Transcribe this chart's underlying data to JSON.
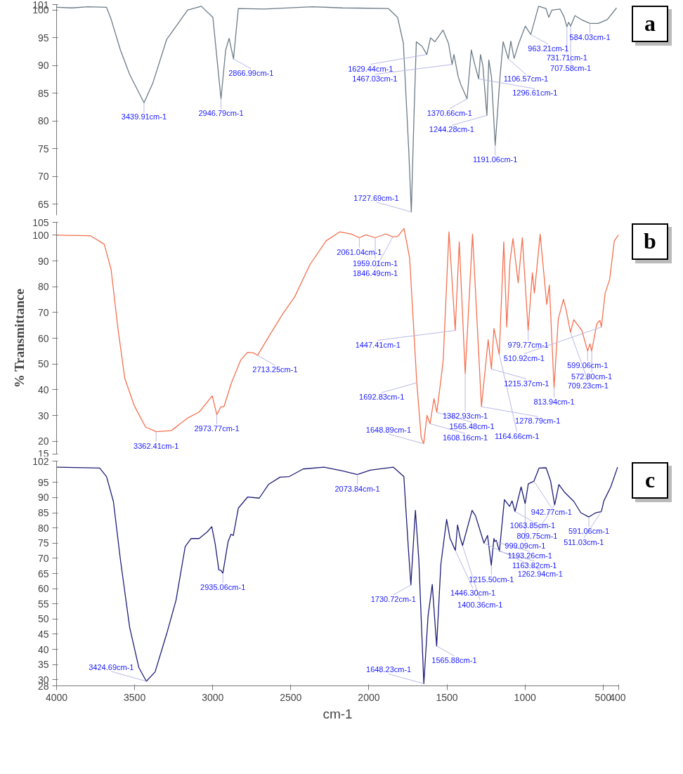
{
  "chart_data": [
    {
      "type": "line",
      "xlim": [
        4000,
        400
      ],
      "ylim": [
        63,
        101
      ],
      "xticks": [
        4000,
        3500,
        3000,
        2500,
        2000,
        1500,
        1000,
        500,
        400
      ],
      "yticks": [
        101,
        100,
        95,
        90,
        85,
        80,
        75,
        70,
        65
      ],
      "tick_labels": "y",
      "x": [
        4000,
        3900,
        3800,
        3680,
        3650,
        3591,
        3532,
        3440,
        3384,
        3295,
        3161,
        3073,
        2999,
        2947,
        2917,
        2895,
        2867,
        2836,
        2673,
        2362,
        2169,
        1876,
        1816,
        1779,
        1745,
        1728,
        1712,
        1696,
        1660,
        1629,
        1605,
        1577,
        1525,
        1490,
        1467,
        1455,
        1428,
        1410,
        1371,
        1344,
        1320,
        1297,
        1285,
        1270,
        1244,
        1232,
        1215,
        1191,
        1160,
        1140,
        1107,
        1091,
        1070,
        1040,
        998,
        963,
        913,
        866,
        848,
        828,
        776,
        750,
        732,
        720,
        708,
        680,
        640,
        584,
        532,
        473,
        414
      ],
      "series": [
        {
          "color": "#6b7b87",
          "values": [
            100.5,
            100.4,
            100.6,
            100.5,
            98.3,
            92.8,
            88.4,
            83.3,
            86.8,
            94.7,
            100.0,
            100.7,
            98.7,
            84.0,
            92.8,
            94.9,
            91.2,
            100.3,
            100.2,
            100.6,
            100.4,
            100.3,
            98.7,
            94,
            75,
            63.6,
            80,
            94.3,
            93.5,
            92.0,
            95.0,
            94.3,
            96.4,
            94,
            90.2,
            92.0,
            88.0,
            86.5,
            84.0,
            92.8,
            90,
            87.6,
            92.0,
            90,
            81.0,
            91.0,
            88,
            75.6,
            88,
            94.3,
            91.2,
            94.4,
            91.3,
            94,
            97.1,
            95.6,
            100.7,
            100.3,
            98.7,
            100.0,
            100.2,
            98.8,
            97.0,
            97.8,
            97.1,
            99.0,
            98.3,
            97.6,
            97.6,
            98.3,
            100.4
          ]
        }
      ],
      "annotations": [
        "a",
        {
          "text": "3439.91cm-1",
          "x": 3439.91,
          "y": 83.3
        },
        {
          "text": "2946.79cm-1",
          "x": 2946.79,
          "y": 84.0
        },
        {
          "text": "2866.99cm-1",
          "x": 2866.99,
          "y": 91.2
        },
        {
          "text": "1629.44cm-1",
          "x": 1629.44,
          "y": 92.0
        },
        {
          "text": "1467.03cm-1",
          "x": 1467.03,
          "y": 90.2
        },
        {
          "text": "1727.69cm-1",
          "x": 1727.69,
          "y": 63.6
        },
        {
          "text": "1370.66cm-1",
          "x": 1370.66,
          "y": 84.0
        },
        {
          "text": "1296.61cm-1",
          "x": 1296.61,
          "y": 87.6
        },
        {
          "text": "1244.28cm-1",
          "x": 1244.28,
          "y": 81.0
        },
        {
          "text": "1191.06cm-1",
          "x": 1191.06,
          "y": 75.6
        },
        {
          "text": "1106.57cm-1",
          "x": 1106.57,
          "y": 91.2
        },
        {
          "text": "963.21cm-1",
          "x": 963.21,
          "y": 95.6
        },
        {
          "text": "731.71cm-1",
          "x": 731.71,
          "y": 97.0
        },
        {
          "text": "707.58cm-1",
          "x": 707.58,
          "y": 97.1
        },
        {
          "text": "584.03cm-1",
          "x": 584.03,
          "y": 97.6
        }
      ]
    },
    {
      "type": "line",
      "xlim": [
        4000,
        400
      ],
      "ylim": [
        15,
        105
      ],
      "xticks": [
        4000,
        3500,
        3000,
        2500,
        2000,
        1500,
        1000,
        500,
        400
      ],
      "yticks": [
        105,
        100,
        90,
        80,
        70,
        60,
        50,
        40,
        30,
        20,
        15
      ],
      "tick_labels": "y",
      "ylabel": "% Transmittance",
      "x": [
        4000,
        3784,
        3695,
        3651,
        3607,
        3563,
        3504,
        3430,
        3362,
        3265,
        3161,
        3087,
        3003,
        2974,
        2947,
        2928,
        2880,
        2821,
        2777,
        2740,
        2713,
        2644,
        2555,
        2474,
        2378,
        2274,
        2185,
        2111,
        2061,
        2020,
        1959,
        1892,
        1846,
        1816,
        1775,
        1739,
        1693,
        1665,
        1649,
        1628,
        1608,
        1583,
        1565,
        1539,
        1524,
        1487,
        1447,
        1421,
        1383,
        1336,
        1279,
        1236,
        1215,
        1199,
        1165,
        1136,
        1117,
        1096,
        1077,
        1044,
        1017,
        980,
        953,
        940,
        903,
        861,
        844,
        814,
        787,
        754,
        735,
        709,
        688,
        636,
        599,
        584,
        573,
        540,
        520,
        511,
        487,
        458,
        428,
        401
      ],
      "series": [
        {
          "color": "#f5704f",
          "values": [
            100,
            99.8,
            96.5,
            86.8,
            63.8,
            44.4,
            34,
            25.5,
            23.7,
            24.1,
            29,
            31.3,
            37.6,
            30.3,
            33.4,
            33.4,
            42.7,
            51.5,
            54.5,
            54.3,
            53.3,
            60.3,
            69.1,
            76.2,
            88.5,
            97.8,
            101.3,
            100.4,
            99.0,
            100.1,
            99.0,
            100.5,
            99.3,
            99.5,
            102.6,
            91.2,
            42.7,
            21.5,
            19,
            30,
            26.8,
            36.5,
            31.2,
            43.6,
            51.5,
            101.3,
            63,
            97.4,
            46.2,
            100.4,
            33.4,
            59.4,
            48,
            63.8,
            53.7,
            97.4,
            64.3,
            89.9,
            98.7,
            81.5,
            99.0,
            63,
            85.4,
            77.5,
            100.4,
            73.1,
            80.6,
            40.7,
            67.4,
            75.1,
            70.5,
            62.3,
            67.2,
            63,
            55,
            57.8,
            55,
            65.6,
            66.9,
            64.3,
            77.5,
            82.8,
            97.8,
            100.1
          ]
        }
      ],
      "annotations": [
        "b",
        {
          "text": "3362.41cm-1",
          "x": 3362.41,
          "y": 23.7
        },
        {
          "text": "2973.77cm-1",
          "x": 2973.77,
          "y": 30.3
        },
        {
          "text": "2713.25cm-1",
          "x": 2713.25,
          "y": 53.3
        },
        {
          "text": "2061.04cm-1",
          "x": 2061.04,
          "y": 99.0
        },
        {
          "text": "1959.01cm-1",
          "x": 1959.01,
          "y": 99.0
        },
        {
          "text": "1846.49cm-1",
          "x": 1846.49,
          "y": 99.3
        },
        {
          "text": "1447.41cm-1",
          "x": 1447.41,
          "y": 63
        },
        {
          "text": "1692.83cm-1",
          "x": 1692.83,
          "y": 42.7
        },
        {
          "text": "1648.89cm-1",
          "x": 1648.89,
          "y": 19
        },
        {
          "text": "1608.16cm-1",
          "x": 1608.16,
          "y": 26.8
        },
        {
          "text": "1565.48cm-1",
          "x": 1565.48,
          "y": 31.2
        },
        {
          "text": "1382.93cm-1",
          "x": 1382.93,
          "y": 46.2
        },
        {
          "text": "1278.79cm-1",
          "x": 1278.79,
          "y": 33.4
        },
        {
          "text": "1215.37cm-1",
          "x": 1215.37,
          "y": 48
        },
        {
          "text": "1164.66cm-1",
          "x": 1164.66,
          "y": 53.7
        },
        {
          "text": "979.77cm-1",
          "x": 979.77,
          "y": 63
        },
        {
          "text": "813.94cm-1",
          "x": 813.94,
          "y": 40.7
        },
        {
          "text": "709.23cm-1",
          "x": 709.23,
          "y": 62.3
        },
        {
          "text": "599.06cm-1",
          "x": 599.06,
          "y": 55
        },
        {
          "text": "572.80cm-1",
          "x": 572.8,
          "y": 55
        },
        {
          "text": "510.92cm-1",
          "x": 510.92,
          "y": 64.3
        }
      ]
    },
    {
      "type": "line",
      "xlim": [
        4000,
        400
      ],
      "ylim": [
        28,
        102
      ],
      "xticks": [
        4000,
        3500,
        3000,
        2500,
        2000,
        1500,
        1000,
        500,
        400
      ],
      "yticks": [
        102,
        95,
        90,
        85,
        80,
        75,
        70,
        65,
        60,
        55,
        50,
        45,
        40,
        35,
        30,
        28
      ],
      "xlabel": "cm-1",
      "x": [
        4000,
        3724,
        3680,
        3636,
        3591,
        3532,
        3473,
        3425,
        3369,
        3295,
        3235,
        3176,
        3139,
        3087,
        3035,
        3006,
        2984,
        2961,
        2947,
        2935,
        2902,
        2883,
        2868,
        2836,
        2776,
        2702,
        2643,
        2569,
        2510,
        2421,
        2288,
        2170,
        2074,
        1991,
        1843,
        1776,
        1747,
        1731,
        1702,
        1680,
        1648,
        1621,
        1594,
        1566,
        1539,
        1502,
        1480,
        1446,
        1432,
        1416,
        1400,
        1339,
        1317,
        1263,
        1240,
        1216,
        1199,
        1193,
        1184,
        1164,
        1132,
        1099,
        1083,
        1064,
        1025,
        999,
        979,
        943,
        910,
        865,
        836,
        810,
        783,
        746,
        687,
        643,
        591,
        547,
        511,
        495,
        451,
        407
      ],
      "series": [
        {
          "color": "#1c1c78",
          "values": [
            100,
            99.7,
            96.9,
            88.7,
            69.5,
            47.3,
            34,
            29.5,
            32.6,
            45.1,
            56.2,
            73.9,
            76.5,
            76.5,
            78.7,
            80.4,
            74.7,
            66.2,
            66.0,
            65.1,
            75.4,
            77.9,
            77.5,
            86.5,
            90.2,
            89.8,
            94.3,
            96.7,
            96.9,
            99.4,
            100,
            98.8,
            97.6,
            99.0,
            100,
            96.9,
            73.2,
            61.2,
            85.8,
            69.5,
            28.7,
            51,
            61.4,
            41.1,
            68,
            82.8,
            76.5,
            72.6,
            81.0,
            76.9,
            74.2,
            85.8,
            84.0,
            75,
            77.5,
            67.7,
            76.5,
            75.5,
            75.9,
            72.3,
            89.3,
            87.1,
            88.9,
            85.4,
            93.5,
            88,
            94.5,
            95.4,
            99.7,
            99.8,
            95.4,
            87.6,
            94.3,
            91.7,
            88.7,
            85,
            83.6,
            85,
            85.4,
            88.9,
            93.5,
            100
          ]
        }
      ],
      "annotations": [
        "c",
        {
          "text": "3424.69cm-1",
          "x": 3424.69,
          "y": 29.5
        },
        {
          "text": "2935.06cm-1",
          "x": 2935.06,
          "y": 65.1
        },
        {
          "text": "2073.84cm-1",
          "x": 2073.84,
          "y": 97.6
        },
        {
          "text": "1400.36cm-1",
          "x": 1400.36,
          "y": 74.2
        },
        {
          "text": "1446.30cm-1",
          "x": 1446.3,
          "y": 72.6
        },
        {
          "text": "1730.72cm-1",
          "x": 1730.72,
          "y": 61.2
        },
        {
          "text": "1648.23cm-1",
          "x": 1648.23,
          "y": 28.7
        },
        {
          "text": "1565.88cm-1",
          "x": 1565.88,
          "y": 41.1
        },
        {
          "text": "1262.94cm-1",
          "x": 1262.94,
          "y": 75
        },
        {
          "text": "1215.50cm-1",
          "x": 1215.5,
          "y": 67.7
        },
        {
          "text": "1193.26cm-1",
          "x": 1193.26,
          "y": 75.5
        },
        {
          "text": "1163.82cm-1",
          "x": 1163.82,
          "y": 72.3
        },
        {
          "text": "1063.85cm-1",
          "x": 1063.85,
          "y": 85.4
        },
        {
          "text": "999.09cm-1",
          "x": 999.09,
          "y": 88
        },
        {
          "text": "942.77cm-1",
          "x": 942.77,
          "y": 95.4
        },
        {
          "text": "809.75cm-1",
          "x": 809.75,
          "y": 87.6
        },
        {
          "text": "591.06cm-1",
          "x": 591.06,
          "y": 83.6
        },
        {
          "text": "511.03cm-1",
          "x": 511.03,
          "y": 85.4
        }
      ]
    }
  ]
}
